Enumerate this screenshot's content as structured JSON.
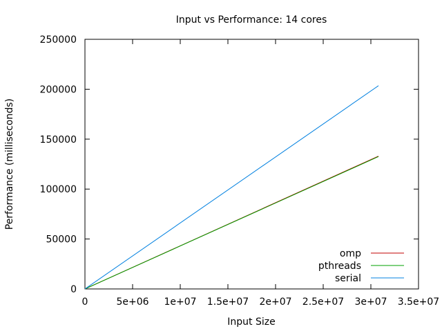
{
  "chart_data": {
    "type": "line",
    "title": "Input vs Performance: 14 cores",
    "xlabel": "Input Size",
    "ylabel": "Performance (milliseconds)",
    "xlim": [
      0,
      35000000
    ],
    "ylim": [
      0,
      250000
    ],
    "x_ticks": [
      0,
      5000000,
      10000000,
      15000000,
      20000000,
      25000000,
      30000000,
      35000000
    ],
    "x_tick_labels": [
      "0",
      "5e+06",
      "1e+07",
      "1.5e+07",
      "2e+07",
      "2.5e+07",
      "3e+07",
      "3.5e+07"
    ],
    "y_ticks": [
      0,
      50000,
      100000,
      150000,
      200000,
      250000
    ],
    "y_tick_labels": [
      "0",
      "50000",
      "100000",
      "150000",
      "200000",
      "250000"
    ],
    "grid": false,
    "legend_position": "bottom-right",
    "series": [
      {
        "name": "omp",
        "color": "#c00000",
        "x": [
          0,
          30800000
        ],
        "y": [
          0,
          133000
        ]
      },
      {
        "name": "pthreads",
        "color": "#00a000",
        "x": [
          0,
          30800000
        ],
        "y": [
          0,
          132500
        ]
      },
      {
        "name": "serial",
        "color": "#0080e0",
        "x": [
          0,
          30800000
        ],
        "y": [
          0,
          203500
        ]
      }
    ]
  }
}
